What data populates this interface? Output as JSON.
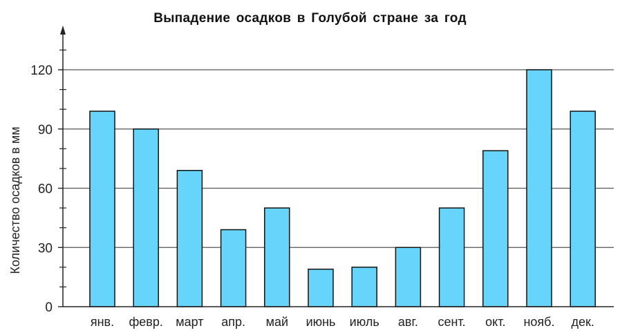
{
  "chart_data": {
    "type": "bar",
    "title": "Выпадение осадков в Голубой стране за год",
    "xlabel": "",
    "ylabel": "Количество осадков в мм",
    "categories": [
      "янв.",
      "февр.",
      "март",
      "апр.",
      "май",
      "июнь",
      "июль",
      "авг.",
      "сент.",
      "окт.",
      "нояб.",
      "дек."
    ],
    "values": [
      99,
      90,
      69,
      39,
      50,
      19,
      20,
      30,
      50,
      79,
      120,
      99
    ],
    "ylim": [
      0,
      130
    ],
    "yticks": [
      0,
      30,
      60,
      90,
      120
    ],
    "grid": true,
    "colors": {
      "bar_fill": "#66d4fb",
      "bar_stroke": "#111111",
      "grid": "#555555",
      "axis": "#222222"
    }
  }
}
